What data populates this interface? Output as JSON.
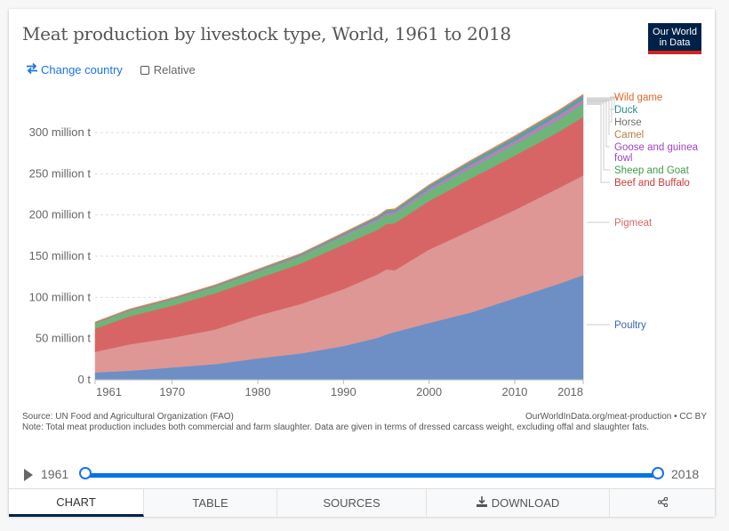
{
  "header": {
    "title": "Meat production by livestock type, World, 1961 to 2018",
    "logo_line1": "Our World",
    "logo_line2": "in Data"
  },
  "controls": {
    "change_country": "Change country",
    "relative": "Relative",
    "relative_checked": false
  },
  "chart_data": {
    "type": "area",
    "stacked": true,
    "title": "Meat production by livestock type, World, 1961 to 2018",
    "xlabel": "",
    "ylabel": "",
    "xlim": [
      1961,
      2018
    ],
    "ylim": [
      0,
      345
    ],
    "y_unit": "million t",
    "y_ticks": [
      0,
      50,
      100,
      150,
      200,
      250,
      300
    ],
    "y_tick_labels": [
      "0 t",
      "50 million t",
      "100 million t",
      "150 million t",
      "200 million t",
      "250 million t",
      "300 million t"
    ],
    "x_ticks": [
      1961,
      1970,
      1980,
      1990,
      2000,
      2010,
      2018
    ],
    "x_tick_labels": [
      "1961",
      "1970",
      "1980",
      "1990",
      "2000",
      "2010",
      "2018"
    ],
    "grid": "horizontal-dashed",
    "legend_position": "right",
    "x": [
      1961,
      1965,
      1970,
      1975,
      1980,
      1985,
      1990,
      1994,
      1995,
      1996,
      2000,
      2005,
      2010,
      2015,
      2018
    ],
    "series": [
      {
        "name": "Poultry",
        "color": "#6d8fc5",
        "values": [
          9,
          11,
          15,
          19,
          26,
          32,
          41,
          51,
          55,
          58,
          69,
          82,
          99,
          116,
          127
        ]
      },
      {
        "name": "Pigmeat",
        "color": "#de9794",
        "values": [
          25,
          32,
          36,
          42,
          52,
          60,
          69,
          77,
          79,
          75,
          89,
          100,
          107,
          116,
          121
        ]
      },
      {
        "name": "Beef and Buffalo",
        "color": "#d86565",
        "values": [
          28,
          34,
          39,
          44,
          45,
          49,
          54,
          54,
          55,
          57,
          59,
          63,
          66,
          68,
          71
        ]
      },
      {
        "name": "Sheep and Goat",
        "color": "#6eb57a",
        "values": [
          6,
          6.5,
          7,
          7.5,
          8,
          8.5,
          10,
          11,
          11,
          11,
          12,
          13,
          13.5,
          15,
          16
        ]
      },
      {
        "name": "Goose and guinea fowl",
        "color": "#b67ec9",
        "values": [
          0.3,
          0.3,
          0.4,
          0.5,
          0.6,
          0.8,
          1.2,
          1.8,
          2,
          2,
          2.5,
          3,
          3.5,
          4,
          4.2
        ]
      },
      {
        "name": "Camel",
        "color": "#c39b69",
        "values": [
          0.2,
          0.2,
          0.2,
          0.2,
          0.2,
          0.2,
          0.3,
          0.3,
          0.3,
          0.3,
          0.3,
          0.4,
          0.5,
          0.6,
          0.6
        ]
      },
      {
        "name": "Horse",
        "color": "#8c8c8c",
        "values": [
          0.6,
          0.6,
          0.6,
          0.6,
          0.6,
          0.6,
          0.6,
          0.7,
          0.7,
          0.7,
          0.7,
          0.8,
          0.8,
          0.8,
          0.8
        ]
      },
      {
        "name": "Duck",
        "color": "#55a1ab",
        "values": [
          0.4,
          0.5,
          0.6,
          0.7,
          1,
          1.4,
          1.6,
          2.2,
          2.3,
          2.4,
          3,
          3.6,
          4.3,
          4.5,
          4.4
        ]
      },
      {
        "name": "Wild game",
        "color": "#e18957",
        "values": [
          0.8,
          0.8,
          0.8,
          0.8,
          0.9,
          0.9,
          1,
          1.1,
          1.2,
          1.2,
          1.3,
          1.4,
          1.5,
          1.5,
          1.5
        ]
      }
    ],
    "legend_labels": [
      {
        "name": "Wild game",
        "color": "#e0672b"
      },
      {
        "name": "Duck",
        "color": "#2a8a94"
      },
      {
        "name": "Horse",
        "color": "#6e6e6e"
      },
      {
        "name": "Camel",
        "color": "#b08244"
      },
      {
        "name": "Goose and guinea fowl",
        "color": "#a045bf"
      },
      {
        "name": "Sheep and Goat",
        "color": "#3e9a4b"
      },
      {
        "name": "Beef and Buffalo",
        "color": "#cc3a3a"
      },
      {
        "name": "Pigmeat",
        "color": "#d36b68"
      },
      {
        "name": "Poultry",
        "color": "#3a65b0"
      }
    ]
  },
  "footer": {
    "source": "Source: UN Food and Agricultural Organization (FAO)",
    "url": "OurWorldInData.org/meat-production • CC BY",
    "note": "Note: Total meat production includes both commercial and farm slaughter. Data are given in terms of dressed carcass weight, excluding offal and slaughter fats."
  },
  "timeline": {
    "start_year": "1961",
    "end_year": "2018"
  },
  "tabs": [
    {
      "label": "CHART",
      "active": true
    },
    {
      "label": "TABLE",
      "active": false
    },
    {
      "label": "SOURCES",
      "active": false
    },
    {
      "label": "DOWNLOAD",
      "active": false
    },
    {
      "label": "",
      "active": false
    }
  ]
}
